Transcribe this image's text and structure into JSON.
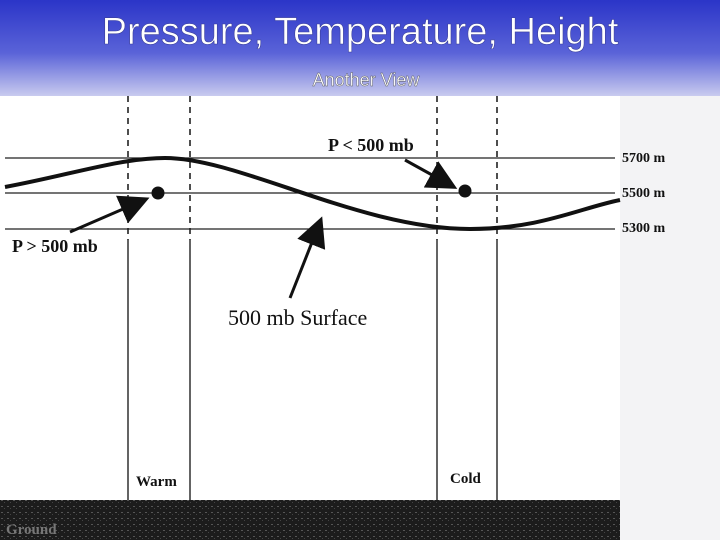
{
  "header": {
    "title": "Pressure, Temperature, Height",
    "subtitle": "Another View"
  },
  "diagram": {
    "labels": {
      "low_pressure": "P < 500 mb",
      "high_pressure": "P > 500 mb",
      "surface": "500 mb Surface"
    },
    "heights": [
      "5700 m",
      "5500 m",
      "5300 m"
    ],
    "columns": [
      "Warm",
      "Cold"
    ],
    "ground": "Ground"
  }
}
